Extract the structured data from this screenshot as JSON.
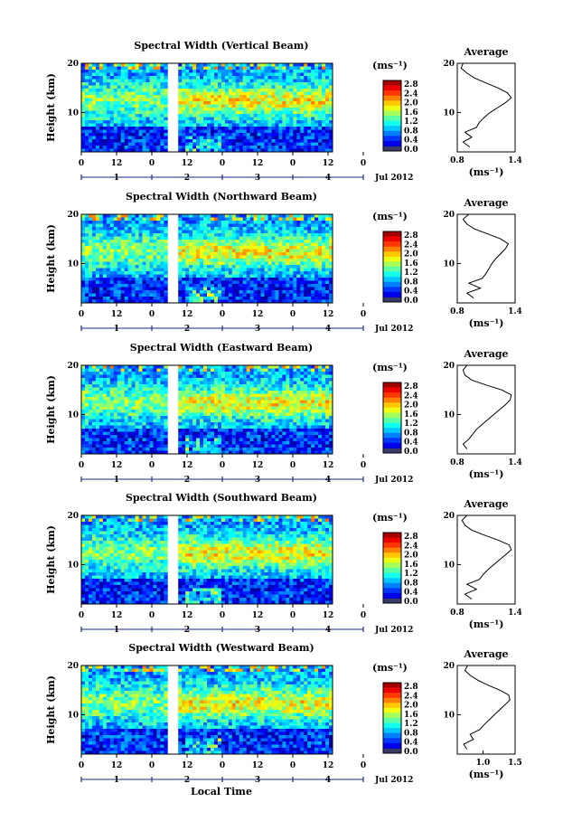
{
  "figure": {
    "xlabel": "Local Time",
    "date_label": "Jul 2012",
    "ylabel": "Height (km)",
    "unit_label": "(ms⁻¹)",
    "avg_title": "Average"
  },
  "chart_data": [
    {
      "type": "heatmap",
      "title": "Spectral Width (Vertical Beam)",
      "ylim": [
        2,
        20
      ],
      "yticks": [
        10,
        20
      ],
      "hour_ticks": [
        "0",
        "12",
        "0",
        "12",
        "0",
        "12",
        "0",
        "12",
        "0"
      ],
      "day_ticks": [
        "1",
        "2",
        "3",
        "4"
      ],
      "colorbar": {
        "range": [
          0.0,
          2.8
        ],
        "ticks": [
          "2.8",
          "2.4",
          "2.0",
          "1.6",
          "1.2",
          "0.8",
          "0.4",
          "0.0"
        ]
      },
      "average": {
        "xlim": [
          0.8,
          1.4
        ],
        "xticks": [
          "0.8",
          "1.4"
        ],
        "ylim": [
          2,
          20
        ],
        "profile": [
          [
            0.93,
            3
          ],
          [
            0.86,
            4
          ],
          [
            0.95,
            5
          ],
          [
            0.88,
            6
          ],
          [
            1.0,
            7
          ],
          [
            1.03,
            8
          ],
          [
            1.08,
            9
          ],
          [
            1.14,
            10
          ],
          [
            1.22,
            11
          ],
          [
            1.3,
            12
          ],
          [
            1.36,
            13
          ],
          [
            1.32,
            14
          ],
          [
            1.22,
            15
          ],
          [
            1.1,
            16
          ],
          [
            0.98,
            17
          ],
          [
            0.9,
            18
          ],
          [
            0.84,
            19
          ],
          [
            0.86,
            20
          ]
        ]
      }
    },
    {
      "type": "heatmap",
      "title": "Spectral Width (Northward Beam)",
      "ylim": [
        2,
        20
      ],
      "yticks": [
        10,
        20
      ],
      "hour_ticks": [
        "0",
        "12",
        "0",
        "12",
        "0",
        "12",
        "0",
        "12",
        "0"
      ],
      "day_ticks": [
        "1",
        "2",
        "3",
        "4"
      ],
      "colorbar": {
        "range": [
          0.0,
          2.8
        ],
        "ticks": [
          "2.8",
          "2.4",
          "2.0",
          "1.6",
          "1.2",
          "0.8",
          "0.4",
          "0.0"
        ]
      },
      "average": {
        "xlim": [
          0.8,
          1.4
        ],
        "xticks": [
          "0.8",
          "1.4"
        ],
        "ylim": [
          2,
          20
        ],
        "profile": [
          [
            0.97,
            3
          ],
          [
            0.9,
            4
          ],
          [
            1.04,
            5
          ],
          [
            0.92,
            6
          ],
          [
            1.06,
            7
          ],
          [
            1.1,
            8
          ],
          [
            1.13,
            9
          ],
          [
            1.16,
            10
          ],
          [
            1.2,
            11
          ],
          [
            1.25,
            12
          ],
          [
            1.3,
            13
          ],
          [
            1.33,
            14
          ],
          [
            1.25,
            15
          ],
          [
            1.12,
            16
          ],
          [
            0.98,
            17
          ],
          [
            0.9,
            18
          ],
          [
            0.86,
            19
          ],
          [
            0.92,
            20
          ]
        ]
      }
    },
    {
      "type": "heatmap",
      "title": "Spectral Width (Eastward Beam)",
      "ylim": [
        2,
        20
      ],
      "yticks": [
        10,
        20
      ],
      "hour_ticks": [
        "0",
        "12",
        "0",
        "12",
        "0",
        "12",
        "0",
        "12",
        "0"
      ],
      "day_ticks": [
        "1",
        "2",
        "3",
        "4"
      ],
      "colorbar": {
        "range": [
          0.0,
          2.8
        ],
        "ticks": [
          "2.8",
          "2.4",
          "2.0",
          "1.6",
          "1.2",
          "0.8",
          "0.4",
          "0.0"
        ]
      },
      "average": {
        "xlim": [
          0.8,
          1.4
        ],
        "xticks": [
          "0.8",
          "1.4"
        ],
        "ylim": [
          2,
          20
        ],
        "profile": [
          [
            0.9,
            3
          ],
          [
            0.86,
            4
          ],
          [
            0.92,
            5
          ],
          [
            0.96,
            6
          ],
          [
            1.0,
            7
          ],
          [
            1.06,
            8
          ],
          [
            1.12,
            9
          ],
          [
            1.18,
            10
          ],
          [
            1.24,
            11
          ],
          [
            1.3,
            12
          ],
          [
            1.35,
            13
          ],
          [
            1.36,
            14
          ],
          [
            1.26,
            15
          ],
          [
            1.1,
            16
          ],
          [
            0.95,
            17
          ],
          [
            0.88,
            18
          ],
          [
            0.86,
            19
          ],
          [
            0.9,
            20
          ]
        ]
      }
    },
    {
      "type": "heatmap",
      "title": "Spectral Width (Southward Beam)",
      "ylim": [
        2,
        20
      ],
      "yticks": [
        10,
        20
      ],
      "hour_ticks": [
        "0",
        "12",
        "0",
        "12",
        "0",
        "12",
        "0",
        "12",
        "0"
      ],
      "day_ticks": [
        "1",
        "2",
        "3",
        "4"
      ],
      "colorbar": {
        "range": [
          0.0,
          2.8
        ],
        "ticks": [
          "2.8",
          "2.4",
          "2.0",
          "1.6",
          "1.2",
          "0.8",
          "0.4",
          "0.0"
        ]
      },
      "average": {
        "xlim": [
          0.8,
          1.4
        ],
        "xticks": [
          "0.8",
          "1.4"
        ],
        "ylim": [
          2,
          20
        ],
        "profile": [
          [
            0.95,
            3
          ],
          [
            0.88,
            4
          ],
          [
            1.0,
            5
          ],
          [
            0.9,
            6
          ],
          [
            1.03,
            7
          ],
          [
            1.07,
            8
          ],
          [
            1.12,
            9
          ],
          [
            1.18,
            10
          ],
          [
            1.24,
            11
          ],
          [
            1.3,
            12
          ],
          [
            1.36,
            13
          ],
          [
            1.34,
            14
          ],
          [
            1.22,
            15
          ],
          [
            1.08,
            16
          ],
          [
            0.95,
            17
          ],
          [
            0.88,
            18
          ],
          [
            0.85,
            19
          ],
          [
            0.9,
            20
          ]
        ]
      }
    },
    {
      "type": "heatmap",
      "title": "Spectral Width (Westward Beam)",
      "ylim": [
        2,
        20
      ],
      "yticks": [
        10,
        20
      ],
      "hour_ticks": [
        "0",
        "12",
        "0",
        "12",
        "0",
        "12",
        "0",
        "12",
        "0"
      ],
      "day_ticks": [
        "1",
        "2",
        "3",
        "4"
      ],
      "colorbar": {
        "range": [
          0.0,
          2.8
        ],
        "ticks": [
          "2.8",
          "2.4",
          "2.0",
          "1.6",
          "1.2",
          "0.8",
          "0.4",
          "0.0"
        ]
      },
      "average": {
        "xlim": [
          0.6,
          1.5
        ],
        "xticks": [
          "1.0",
          "1.5"
        ],
        "ylim": [
          2,
          20
        ],
        "profile": [
          [
            0.75,
            3
          ],
          [
            0.7,
            4
          ],
          [
            0.85,
            5
          ],
          [
            0.8,
            6
          ],
          [
            0.95,
            7
          ],
          [
            1.02,
            8
          ],
          [
            1.1,
            9
          ],
          [
            1.18,
            10
          ],
          [
            1.26,
            11
          ],
          [
            1.34,
            12
          ],
          [
            1.42,
            13
          ],
          [
            1.4,
            14
          ],
          [
            1.26,
            15
          ],
          [
            1.08,
            16
          ],
          [
            0.92,
            17
          ],
          [
            0.8,
            18
          ],
          [
            0.72,
            19
          ],
          [
            0.76,
            20
          ]
        ]
      }
    }
  ]
}
